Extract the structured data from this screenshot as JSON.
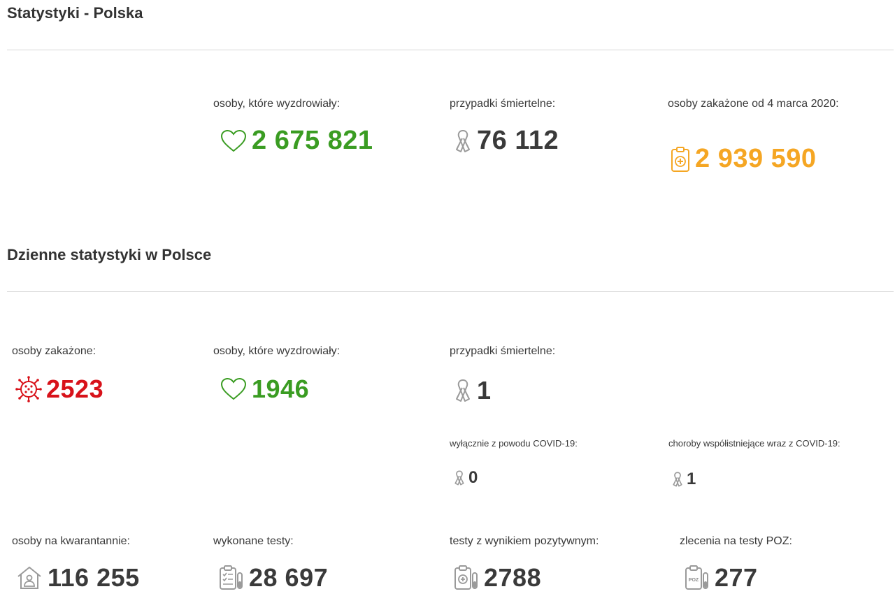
{
  "section_poland": {
    "title": "Statystyki - Polska",
    "recovered": {
      "label": "osoby, które wyzdrowiały:",
      "value": "2 675 821"
    },
    "deaths": {
      "label": "przypadki śmiertelne:",
      "value": "76 112"
    },
    "infected": {
      "label": "osoby zakażone od 4 marca 2020:",
      "value": "2 939 590"
    }
  },
  "section_daily": {
    "title": "Dzienne statystyki w Polsce",
    "infected": {
      "label": "osoby zakażone:",
      "value": "2523"
    },
    "recovered": {
      "label": "osoby, które wyzdrowiały:",
      "value": "1946"
    },
    "deaths": {
      "label": "przypadki śmiertelne:",
      "value": "1"
    },
    "deaths_covid_only": {
      "label": "wyłącznie z powodu COVID-19:",
      "value": "0"
    },
    "deaths_comorbid": {
      "label": "choroby współistniejące wraz z COVID-19:",
      "value": "1"
    },
    "quarantine": {
      "label": "osoby na kwarantannie:",
      "value": "116 255"
    },
    "tests_done": {
      "label": "wykonane testy:",
      "value": "28 697"
    },
    "tests_positive": {
      "label": "testy z wynikiem pozytywnym:",
      "value": "2788"
    },
    "poz_orders": {
      "label": "zlecenia na testy POZ:",
      "value": "277",
      "icon_text": "POZ"
    }
  },
  "colors": {
    "green": "#3a9c22",
    "orange": "#f5a623",
    "red": "#d8121a",
    "dark": "#3a3a3a",
    "ribbon": "#9a9a9a"
  },
  "icons": {
    "recovered": "heart-outline-icon",
    "deaths": "ribbon-icon",
    "infected_total": "clipboard-medical-icon",
    "infected_daily": "virus-icon",
    "quarantine": "house-person-icon",
    "tests_done": "clipboard-test-tube-icon",
    "tests_positive": "clipboard-plus-tube-icon",
    "poz_orders": "clipboard-poz-icon"
  }
}
